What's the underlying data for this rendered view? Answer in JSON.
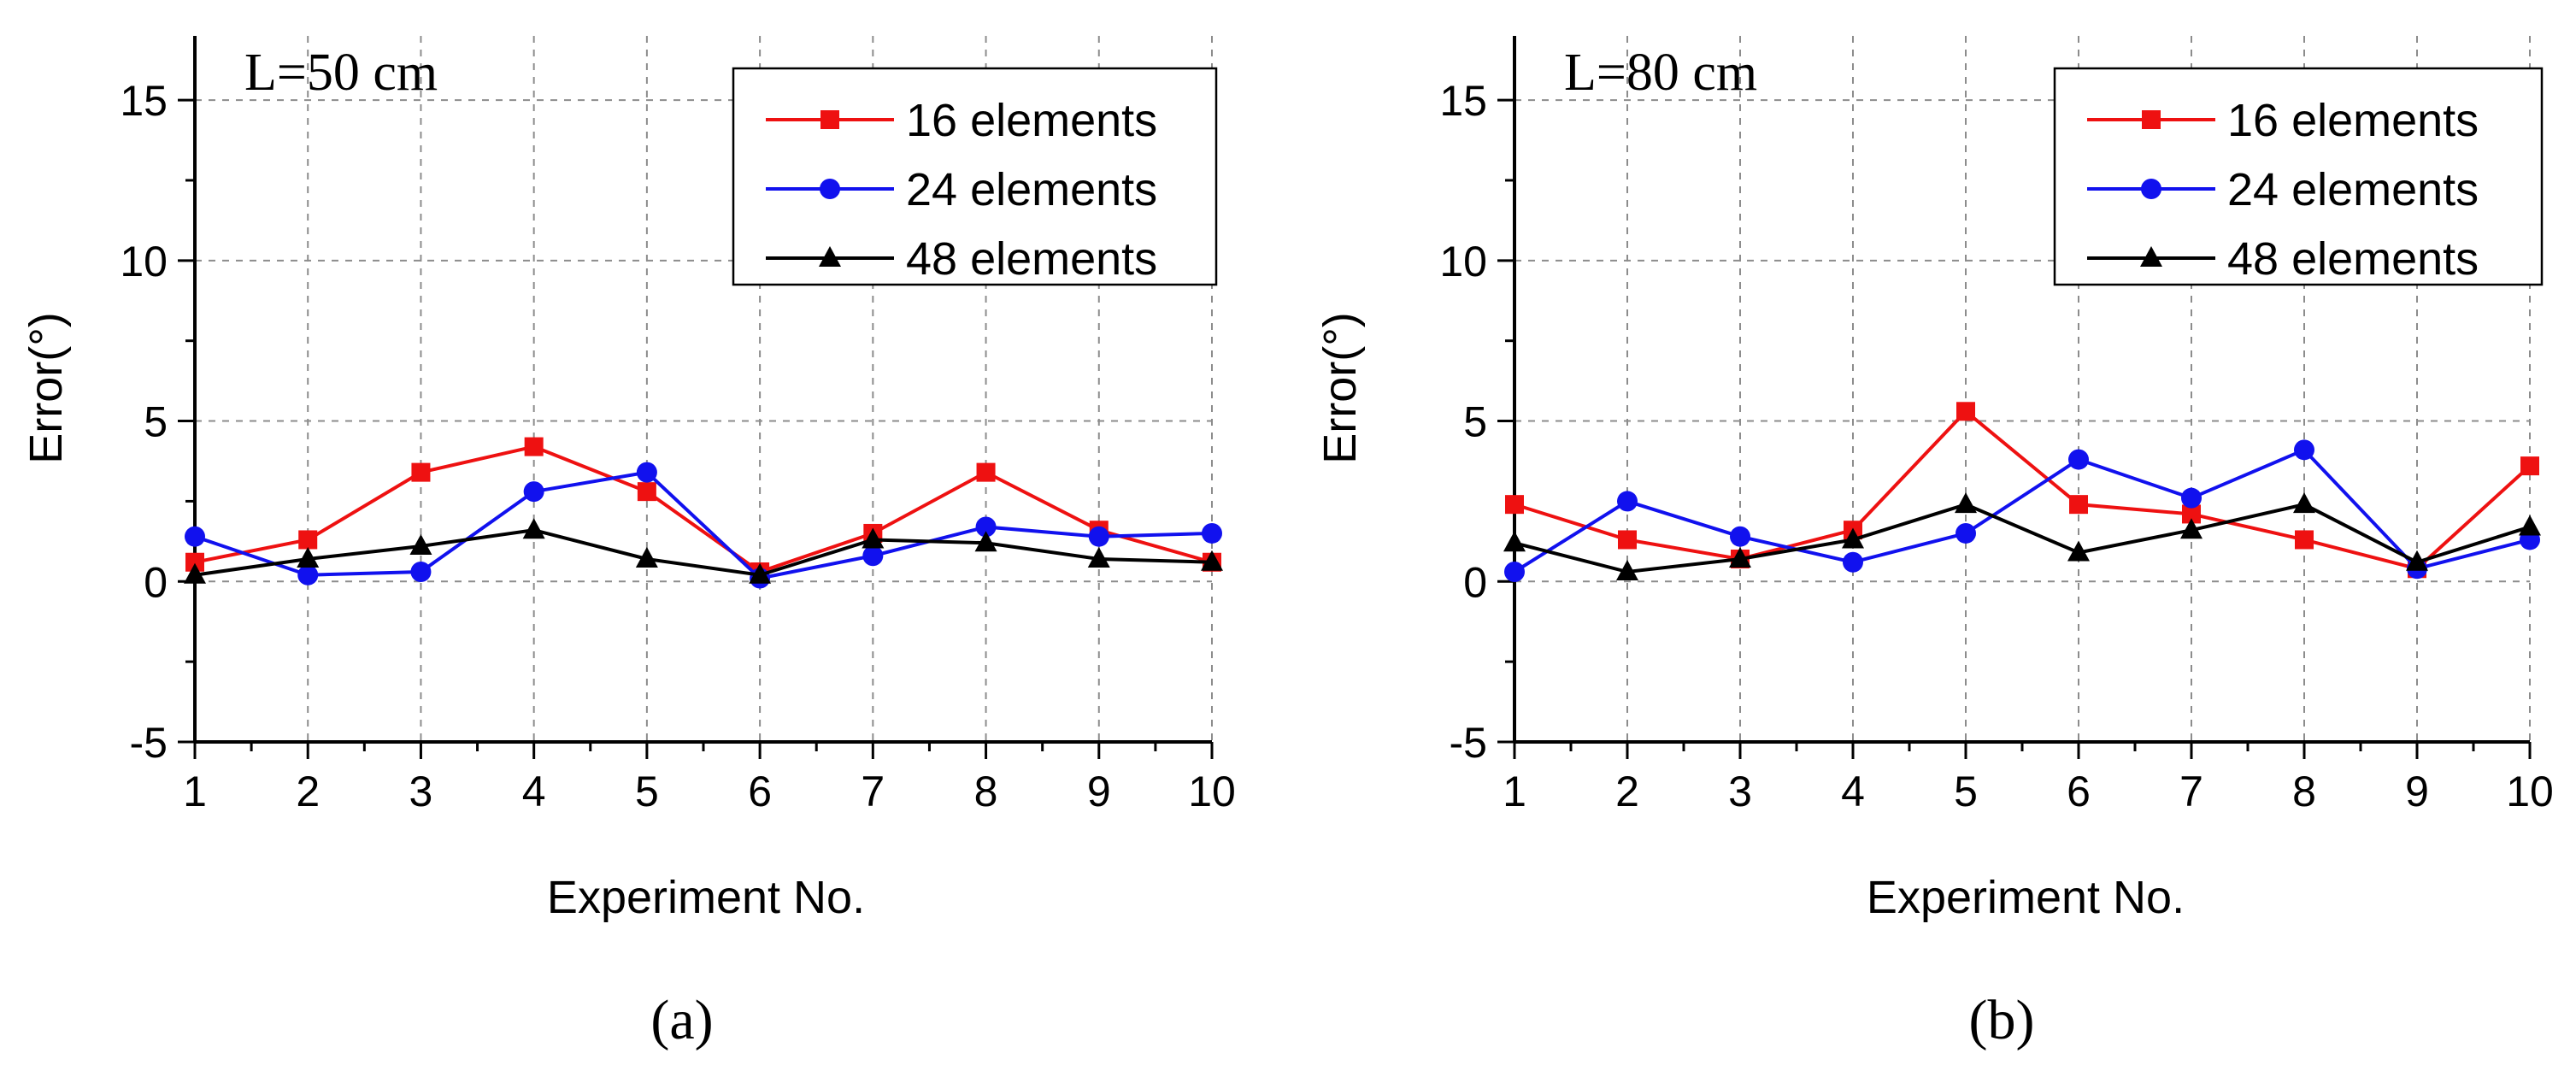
{
  "chart_data": [
    {
      "type": "line",
      "annotation": "L=50 cm",
      "caption": "(a)",
      "xlabel": "Experiment No.",
      "ylabel": "Error(°)",
      "xlim": [
        1,
        10
      ],
      "ylim": [
        -5,
        17
      ],
      "x": [
        1,
        2,
        3,
        4,
        5,
        6,
        7,
        8,
        9,
        10
      ],
      "x_tick_labels": [
        "1",
        "2",
        "3",
        "4",
        "5",
        "6",
        "7",
        "8",
        "9",
        "10"
      ],
      "y_ticks": [
        -5,
        0,
        5,
        10,
        15
      ],
      "y_tick_labels": [
        "-5",
        "0",
        "5",
        "10",
        "15"
      ],
      "grid": true,
      "legend_position": "top-right",
      "series": [
        {
          "name": "16 elements",
          "color": "#ee1111",
          "marker": "square",
          "values": [
            0.6,
            1.3,
            3.4,
            4.2,
            2.8,
            0.3,
            1.5,
            3.4,
            1.6,
            0.6
          ]
        },
        {
          "name": "24 elements",
          "color": "#1111ee",
          "marker": "circle",
          "values": [
            1.4,
            0.2,
            0.3,
            2.8,
            3.4,
            0.1,
            0.8,
            1.7,
            1.4,
            1.5
          ]
        },
        {
          "name": "48 elements",
          "color": "#000000",
          "marker": "triangle",
          "values": [
            0.2,
            0.7,
            1.1,
            1.6,
            0.7,
            0.2,
            1.3,
            1.2,
            0.7,
            0.6
          ]
        }
      ]
    },
    {
      "type": "line",
      "annotation": "L=80 cm",
      "caption": "(b)",
      "xlabel": "Experiment No.",
      "ylabel": "Error(°)",
      "xlim": [
        1,
        10
      ],
      "ylim": [
        -5,
        17
      ],
      "x": [
        1,
        2,
        3,
        4,
        5,
        6,
        7,
        8,
        9,
        10
      ],
      "x_tick_labels": [
        "1",
        "2",
        "3",
        "4",
        "5",
        "6",
        "7",
        "8",
        "9",
        "10"
      ],
      "y_ticks": [
        -5,
        0,
        5,
        10,
        15
      ],
      "y_tick_labels": [
        "-5",
        "0",
        "5",
        "10",
        "15"
      ],
      "grid": true,
      "legend_position": "top-right",
      "series": [
        {
          "name": "16 elements",
          "color": "#ee1111",
          "marker": "square",
          "values": [
            2.4,
            1.3,
            0.7,
            1.6,
            5.3,
            2.4,
            2.1,
            1.3,
            0.4,
            3.6
          ]
        },
        {
          "name": "24 elements",
          "color": "#1111ee",
          "marker": "circle",
          "values": [
            0.3,
            2.5,
            1.4,
            0.6,
            1.5,
            3.8,
            2.6,
            4.1,
            0.4,
            1.3
          ]
        },
        {
          "name": "48 elements",
          "color": "#000000",
          "marker": "triangle",
          "values": [
            1.2,
            0.3,
            0.7,
            1.3,
            2.4,
            0.9,
            1.6,
            2.4,
            0.6,
            1.7
          ]
        }
      ]
    }
  ]
}
